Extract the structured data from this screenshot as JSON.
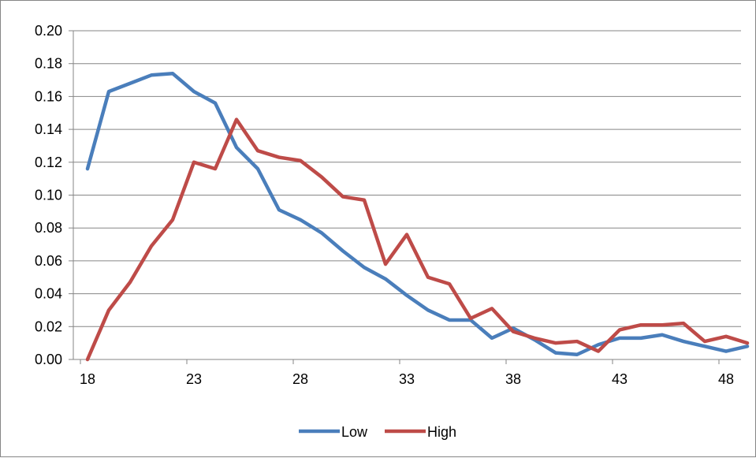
{
  "chart_data": {
    "type": "line",
    "title": "",
    "xlabel": "",
    "ylabel": "",
    "xlim": [
      18,
      49
    ],
    "ylim": [
      0,
      0.2
    ],
    "x_ticks": [
      18,
      23,
      28,
      33,
      38,
      43,
      48
    ],
    "x_tick_labels": [
      "18",
      "23",
      "28",
      "33",
      "38",
      "43",
      "48"
    ],
    "y_ticks": [
      0,
      0.02,
      0.04,
      0.06,
      0.08,
      0.1,
      0.12,
      0.14,
      0.16,
      0.18,
      0.2
    ],
    "y_tick_labels": [
      "0.00",
      "0.02",
      "0.04",
      "0.06",
      "0.08",
      "0.10",
      "0.12",
      "0.14",
      "0.16",
      "0.18",
      "0.20"
    ],
    "grid": "horizontal",
    "legend_position": "bottom",
    "x": [
      18,
      19,
      20,
      21,
      22,
      23,
      24,
      25,
      26,
      27,
      28,
      29,
      30,
      31,
      32,
      33,
      34,
      35,
      36,
      37,
      38,
      39,
      40,
      41,
      42,
      43,
      44,
      45,
      46,
      47,
      48,
      49
    ],
    "series": [
      {
        "name": "Low",
        "color": "#4a7ebb",
        "values": [
          0.116,
          0.163,
          0.168,
          0.173,
          0.174,
          0.163,
          0.156,
          0.129,
          0.116,
          0.091,
          0.085,
          0.077,
          0.066,
          0.056,
          0.049,
          0.039,
          0.03,
          0.024,
          0.024,
          0.013,
          0.019,
          0.012,
          0.004,
          0.003,
          0.009,
          0.013,
          0.013,
          0.015,
          0.011,
          0.008,
          0.005,
          0.008
        ]
      },
      {
        "name": "High",
        "color": "#be4b48",
        "values": [
          0.0,
          0.03,
          0.047,
          0.069,
          0.085,
          0.12,
          0.116,
          0.146,
          0.127,
          0.123,
          0.121,
          0.111,
          0.099,
          0.097,
          0.058,
          0.076,
          0.05,
          0.046,
          0.025,
          0.031,
          0.017,
          0.013,
          0.01,
          0.011,
          0.005,
          0.018,
          0.021,
          0.021,
          0.022,
          0.011,
          0.014,
          0.01
        ]
      }
    ]
  }
}
